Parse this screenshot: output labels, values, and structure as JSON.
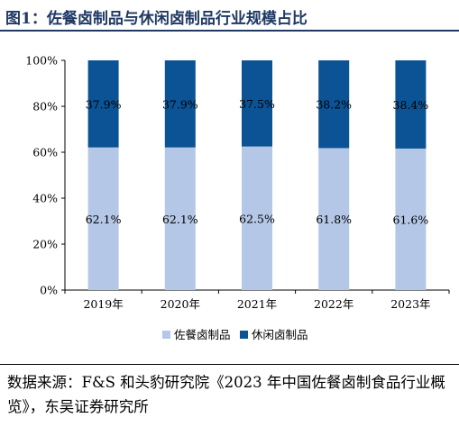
{
  "header": {
    "title": "图1：佐餐卤制品与休闲卤制品行业规模占比"
  },
  "chart_data": {
    "type": "bar",
    "stacked": true,
    "categories": [
      "2019年",
      "2020年",
      "2021年",
      "2022年",
      "2023年"
    ],
    "series": [
      {
        "name": "佐餐卤制品",
        "values": [
          62.1,
          62.1,
          62.5,
          61.8,
          61.6
        ],
        "labels": [
          "62.1%",
          "62.1%",
          "62.5%",
          "61.8%",
          "61.6%"
        ],
        "color": "#b4c7e7"
      },
      {
        "name": "休闲卤制品",
        "values": [
          37.9,
          37.9,
          37.5,
          38.2,
          38.4
        ],
        "labels": [
          "37.9%",
          "37.9%",
          "37.5%",
          "38.2%",
          "38.4%"
        ],
        "color": "#0b5394"
      }
    ],
    "ylim": [
      0,
      100
    ],
    "yticks": [
      0,
      20,
      40,
      60,
      80,
      100
    ],
    "ytick_labels": [
      "0%",
      "20%",
      "40%",
      "60%",
      "80%",
      "100%"
    ],
    "grid": false,
    "legend": "bottom"
  },
  "source": {
    "text": "数据来源：F&S 和头豹研究院《2023 年中国佐餐卤制食品行业概览》，东吴证券研究所"
  }
}
